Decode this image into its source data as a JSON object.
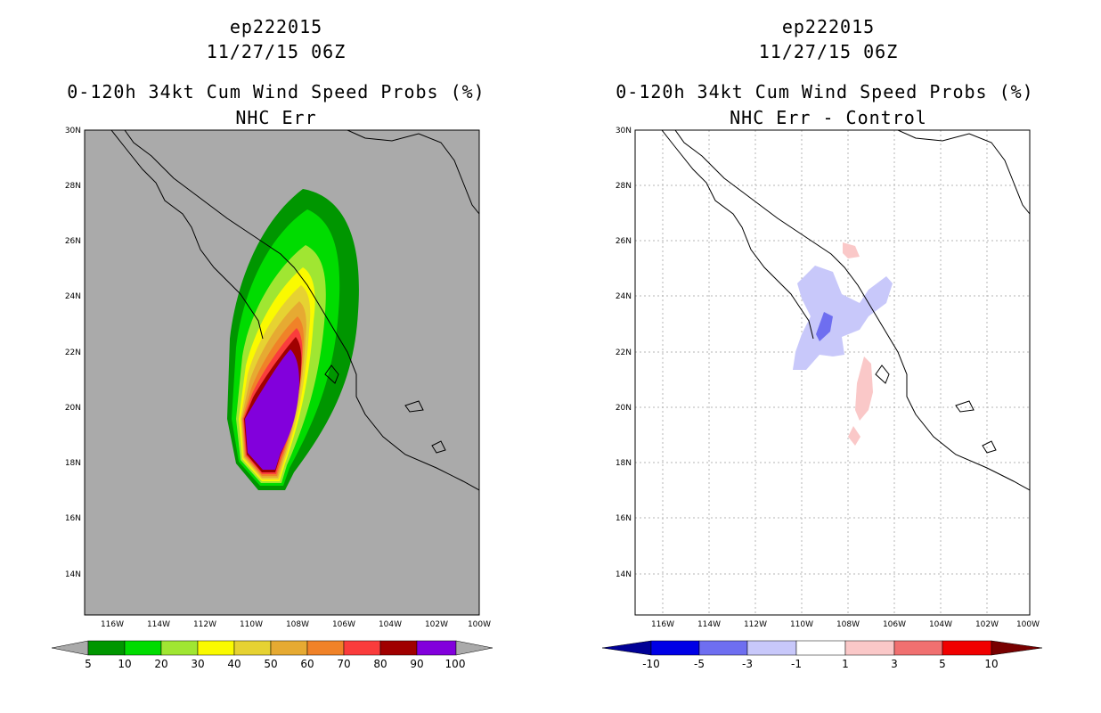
{
  "left": {
    "storm": "ep222015",
    "time": "11/27/15 06Z",
    "product": "0-120h 34kt Cum Wind Speed Probs (%)",
    "subtitle": "NHC Err",
    "lat_labels": [
      "30N",
      "28N",
      "26N",
      "24N",
      "22N",
      "20N",
      "18N",
      "16N",
      "14N"
    ],
    "lon_labels": [
      "116W",
      "114W",
      "112W",
      "110W",
      "108W",
      "106W",
      "104W",
      "102W",
      "100W"
    ],
    "colorbar": {
      "labels": [
        "5",
        "10",
        "20",
        "30",
        "40",
        "50",
        "60",
        "70",
        "80",
        "90",
        "100"
      ],
      "colors": [
        "#009600",
        "#00dc00",
        "#a0e632",
        "#fafa00",
        "#e6d232",
        "#e6aa32",
        "#f08228",
        "#fa3c3c",
        "#a00000",
        "#8200dc"
      ],
      "under_color": "#aaaaaa",
      "over_color": "#aaaaaa"
    },
    "background": "#aaaaaa"
  },
  "right": {
    "storm": "ep222015",
    "time": "11/27/15 06Z",
    "product": "0-120h 34kt Cum Wind Speed Probs (%)",
    "subtitle": "NHC Err - Control",
    "lat_labels": [
      "30N",
      "28N",
      "26N",
      "24N",
      "22N",
      "20N",
      "18N",
      "16N",
      "14N"
    ],
    "lon_labels": [
      "116W",
      "114W",
      "112W",
      "110W",
      "108W",
      "106W",
      "104W",
      "102W",
      "100W"
    ],
    "colorbar": {
      "labels": [
        "-10",
        "-5",
        "-3",
        "-1",
        "1",
        "3",
        "5",
        "10"
      ],
      "colors": [
        "#0000e6",
        "#6e6ef0",
        "#c8c8fa",
        "#ffffff",
        "#fac8c8",
        "#f07070",
        "#f00000"
      ],
      "under_color": "#000096",
      "over_color": "#780000"
    },
    "background": "#ffffff"
  }
}
